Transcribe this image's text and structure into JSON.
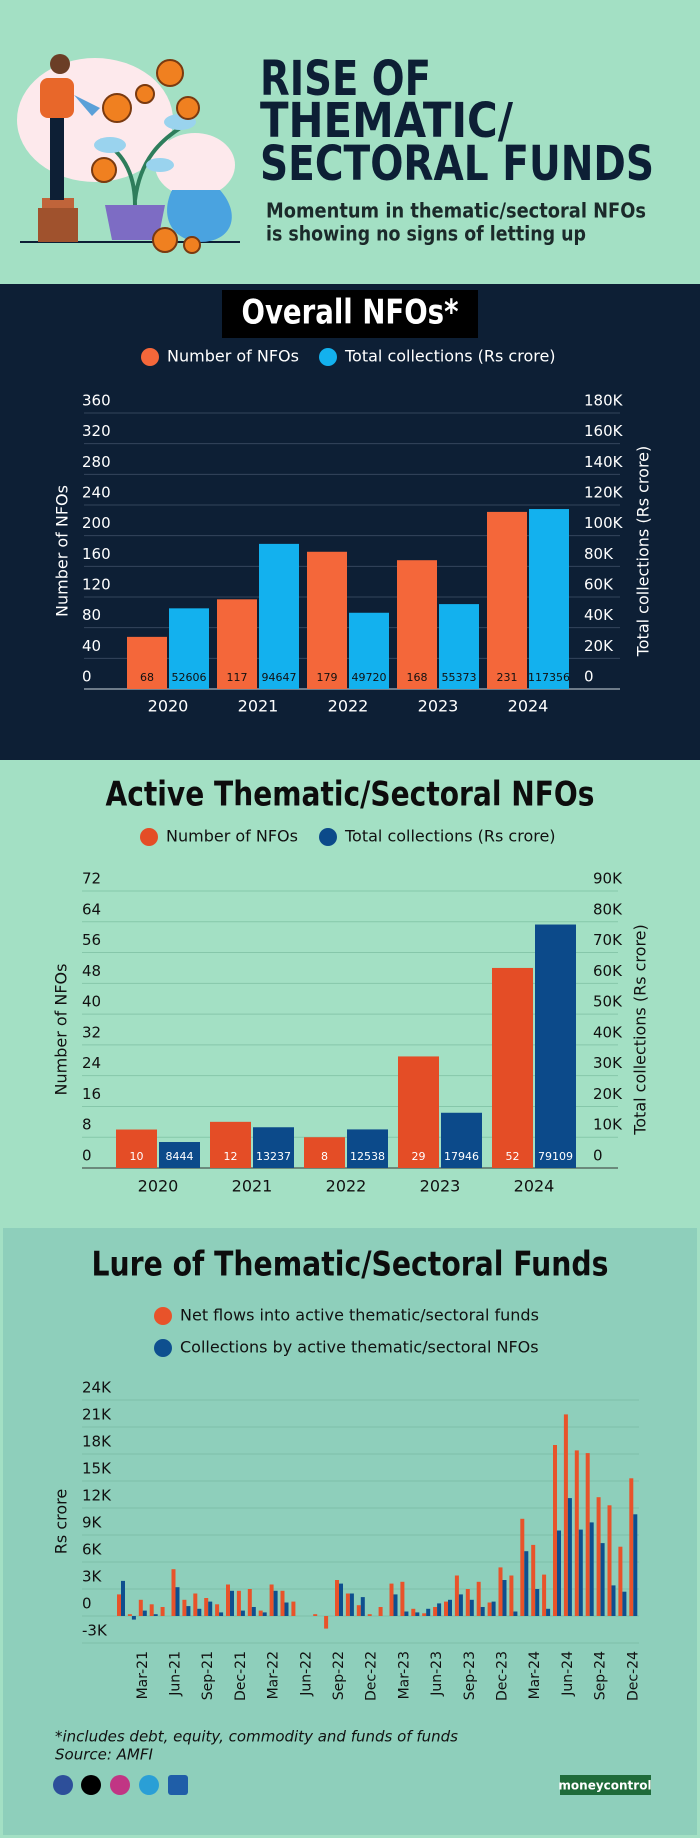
{
  "header": {
    "title_lines": [
      "RISE OF",
      "THEMATIC/",
      "SECTORAL FUNDS"
    ],
    "subtitle_lines": [
      "Momentum in thematic/sectoral NFOs",
      "is showing no signs of letting up"
    ]
  },
  "chart_data": [
    {
      "type": "bar",
      "title": "Overall NFOs*",
      "categories": [
        "2020",
        "2021",
        "2022",
        "2023",
        "2024"
      ],
      "series": [
        {
          "name": "Number of NFOs",
          "color": "#f4673a",
          "values": [
            68,
            117,
            179,
            168,
            231
          ]
        },
        {
          "name": "Total collections (Rs crore)",
          "color": "#13b1ee",
          "axis": "y2",
          "values": [
            52606,
            94647,
            49720,
            55373,
            117356
          ]
        }
      ],
      "ylabel": "Number of NFOs",
      "y2label": "Total collections (Rs crore)",
      "ylim": [
        0,
        360
      ],
      "yticks": [
        0,
        40,
        80,
        120,
        160,
        200,
        240,
        280,
        320,
        360
      ],
      "y2lim": [
        0,
        180000
      ],
      "y2ticks": [
        0,
        {
          "value": 20000,
          "label": "20K"
        },
        {
          "value": 40000,
          "label": "40K"
        },
        {
          "value": 60000,
          "label": "60K"
        },
        {
          "value": 80000,
          "label": "80K"
        },
        {
          "value": 100000,
          "label": "100K"
        },
        {
          "value": 120000,
          "label": "120K"
        },
        {
          "value": 140000,
          "label": "140K"
        },
        {
          "value": 160000,
          "label": "160K"
        },
        {
          "value": 180000,
          "label": "180K"
        }
      ],
      "grid": true
    },
    {
      "type": "bar",
      "title": "Active Thematic/Sectoral NFOs",
      "categories": [
        "2020",
        "2021",
        "2022",
        "2023",
        "2024"
      ],
      "series": [
        {
          "name": "Number of NFOs",
          "color": "#e44d26",
          "values": [
            10,
            12,
            8,
            29,
            52
          ]
        },
        {
          "name": "Total collections (Rs crore)",
          "color": "#0c4a8a",
          "axis": "y2",
          "values": [
            8444,
            13237,
            12538,
            17946,
            79109
          ]
        }
      ],
      "ylabel": "Number of NFOs",
      "y2label": "Total collections (Rs crore)",
      "ylim": [
        0,
        72
      ],
      "yticks": [
        0,
        8,
        16,
        24,
        32,
        40,
        48,
        56,
        64,
        72
      ],
      "y2lim": [
        0,
        90000
      ],
      "y2ticks": [
        0,
        {
          "value": 10000,
          "label": "10K"
        },
        {
          "value": 20000,
          "label": "20K"
        },
        {
          "value": 30000,
          "label": "30K"
        },
        {
          "value": 40000,
          "label": "40K"
        },
        {
          "value": 50000,
          "label": "50K"
        },
        {
          "value": 60000,
          "label": "60K"
        },
        {
          "value": 70000,
          "label": "70K"
        },
        {
          "value": 80000,
          "label": "80K"
        },
        {
          "value": 90000,
          "label": "90K"
        }
      ],
      "grid": true
    },
    {
      "type": "bar",
      "title": "Lure of Thematic/Sectoral Funds",
      "categories": [
        null,
        null,
        "Mar-21",
        null,
        null,
        "Jun-21",
        null,
        null,
        "Sep-21",
        null,
        null,
        "Dec-21",
        null,
        null,
        "Mar-22",
        null,
        null,
        "Jun-22",
        null,
        null,
        "Sep-22",
        null,
        null,
        "Dec-22",
        null,
        null,
        "Mar-23",
        null,
        null,
        "Jun-23",
        null,
        null,
        "Sep-23",
        null,
        null,
        "Dec-23",
        null,
        null,
        "Mar-24",
        null,
        null,
        "Jun-24",
        null,
        null,
        "Sep-24",
        null,
        null,
        "Dec-24"
      ],
      "series": [
        {
          "name": "Net flows into active thematic/sectoral funds",
          "color": "#e8532a",
          "values": [
            2400,
            200,
            1800,
            1300,
            1000,
            5200,
            1800,
            2500,
            2000,
            1300,
            3500,
            2800,
            3000,
            600,
            3500,
            2800,
            1600,
            0,
            200,
            -1400,
            4000,
            2500,
            1200,
            200,
            1000,
            3600,
            3800,
            800,
            300,
            1000,
            1600,
            4500,
            3000,
            3800,
            1500,
            5400,
            4500,
            10800,
            7900,
            4600,
            19000,
            22400,
            18400,
            18100,
            13200,
            12300,
            7700,
            15300
          ]
        },
        {
          "name": "Collections by active thematic/sectoral NFOs",
          "color": "#0e4f8f",
          "values": [
            3900,
            -400,
            600,
            200,
            0,
            3200,
            1100,
            800,
            1600,
            400,
            2800,
            600,
            1000,
            400,
            2800,
            1500,
            0,
            0,
            0,
            0,
            3600,
            2500,
            2100,
            0,
            0,
            2400,
            500,
            400,
            800,
            1400,
            1800,
            2400,
            1800,
            1000,
            1600,
            4000,
            500,
            7200,
            3000,
            800,
            9500,
            13100,
            9600,
            10400,
            8100,
            3400,
            2700,
            11300
          ]
        }
      ],
      "ylabel": "Rs crore",
      "ylim": [
        -3000,
        24000
      ],
      "yticks": [
        {
          "value": -3000,
          "label": "-3K"
        },
        0,
        {
          "value": 3000,
          "label": "3K"
        },
        {
          "value": 6000,
          "label": "6K"
        },
        {
          "value": 9000,
          "label": "9K"
        },
        {
          "value": 12000,
          "label": "12K"
        },
        {
          "value": 15000,
          "label": "15K"
        },
        {
          "value": 18000,
          "label": "18K"
        },
        {
          "value": 21000,
          "label": "21K"
        },
        {
          "value": 24000,
          "label": "24K"
        }
      ],
      "grid": true
    }
  ],
  "footer": {
    "note": "*includes debt, equity, commodity and funds of funds",
    "source": "Source: AMFI",
    "brand": "moneycontrol"
  }
}
